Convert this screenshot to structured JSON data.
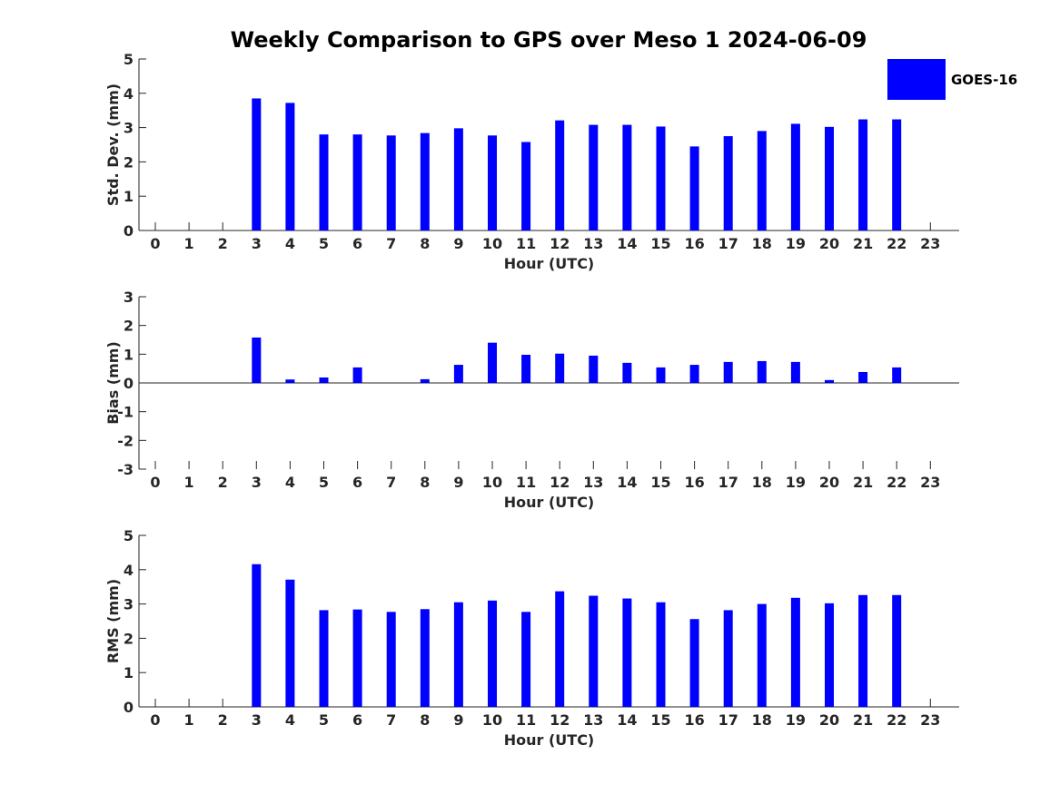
{
  "title": "Weekly Comparison to GPS over Meso 1 2024-06-09",
  "colors": {
    "bar": "#0000FF",
    "axis": "#262626"
  },
  "legend": {
    "label": "GOES-16",
    "position": "top-right"
  },
  "chart_data": [
    {
      "type": "bar",
      "xlabel": "Hour (UTC)",
      "ylabel": "Std. Dev. (mm)",
      "ylim": [
        0,
        5
      ],
      "yticks": [
        "0",
        "1",
        "2",
        "3",
        "4",
        "5"
      ],
      "categories": [
        "0",
        "1",
        "2",
        "3",
        "4",
        "5",
        "6",
        "7",
        "8",
        "9",
        "10",
        "11",
        "12",
        "13",
        "14",
        "15",
        "16",
        "17",
        "18",
        "19",
        "20",
        "21",
        "22",
        "23"
      ],
      "series": [
        {
          "name": "GOES-16",
          "values": [
            null,
            null,
            null,
            3.85,
            3.72,
            2.8,
            2.8,
            2.77,
            2.84,
            2.98,
            2.77,
            2.58,
            3.21,
            3.08,
            3.08,
            3.03,
            2.45,
            2.75,
            2.9,
            3.11,
            3.02,
            3.24,
            3.24,
            null
          ]
        }
      ]
    },
    {
      "type": "bar",
      "xlabel": "Hour (UTC)",
      "ylabel": "Bias (mm)",
      "ylim": [
        -3,
        3
      ],
      "yticks": [
        "-3",
        "-2",
        "-1",
        "0",
        "1",
        "2",
        "3"
      ],
      "categories": [
        "0",
        "1",
        "2",
        "3",
        "4",
        "5",
        "6",
        "7",
        "8",
        "9",
        "10",
        "11",
        "12",
        "13",
        "14",
        "15",
        "16",
        "17",
        "18",
        "19",
        "20",
        "21",
        "22",
        "23"
      ],
      "series": [
        {
          "name": "GOES-16",
          "values": [
            null,
            null,
            null,
            1.58,
            0.12,
            0.19,
            0.54,
            null,
            0.13,
            0.63,
            1.4,
            0.98,
            1.02,
            0.95,
            0.7,
            0.54,
            0.63,
            0.73,
            0.76,
            0.73,
            0.1,
            0.38,
            0.54,
            null
          ]
        }
      ]
    },
    {
      "type": "bar",
      "xlabel": "Hour (UTC)",
      "ylabel": "RMS (mm)",
      "ylim": [
        0,
        5
      ],
      "yticks": [
        "0",
        "1",
        "2",
        "3",
        "4",
        "5"
      ],
      "categories": [
        "0",
        "1",
        "2",
        "3",
        "4",
        "5",
        "6",
        "7",
        "8",
        "9",
        "10",
        "11",
        "12",
        "13",
        "14",
        "15",
        "16",
        "17",
        "18",
        "19",
        "20",
        "21",
        "22",
        "23"
      ],
      "series": [
        {
          "name": "GOES-16",
          "values": [
            null,
            null,
            null,
            4.16,
            3.71,
            2.82,
            2.84,
            2.77,
            2.85,
            3.05,
            3.1,
            2.77,
            3.37,
            3.24,
            3.16,
            3.05,
            2.56,
            2.82,
            3.0,
            3.18,
            3.02,
            3.26,
            3.26,
            null
          ]
        }
      ]
    }
  ]
}
